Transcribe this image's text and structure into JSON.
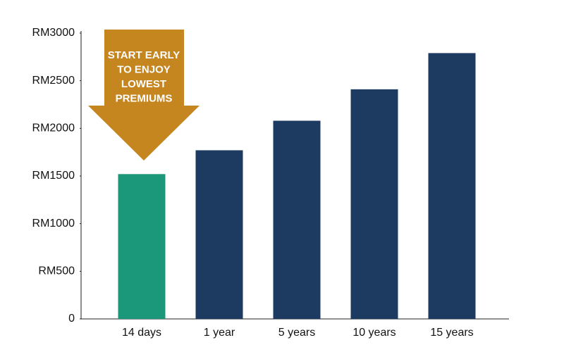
{
  "chart_data": {
    "type": "bar",
    "categories": [
      "14 days",
      "1 year",
      "5 years",
      "10 years",
      "15 years"
    ],
    "values": [
      1520,
      1770,
      2080,
      2410,
      2790
    ],
    "colors": [
      "#1b977a",
      "#1d3a60",
      "#1d3a60",
      "#1d3a60",
      "#1d3a60"
    ],
    "ylim": [
      0,
      3000
    ],
    "yticks": [
      0,
      {
        "value": 500,
        "label": "RM500"
      },
      {
        "value": 1000,
        "label": "RM1000"
      },
      {
        "value": 1500,
        "label": "RM1500"
      },
      {
        "value": 2000,
        "label": "RM2000"
      },
      {
        "value": 2500,
        "label": "RM2500"
      },
      {
        "value": 3000,
        "label": "RM3000"
      }
    ],
    "grid": false,
    "annotation": [
      "START EARLY",
      "TO ENJOY",
      "LOWEST",
      "PREMIUMS"
    ]
  }
}
